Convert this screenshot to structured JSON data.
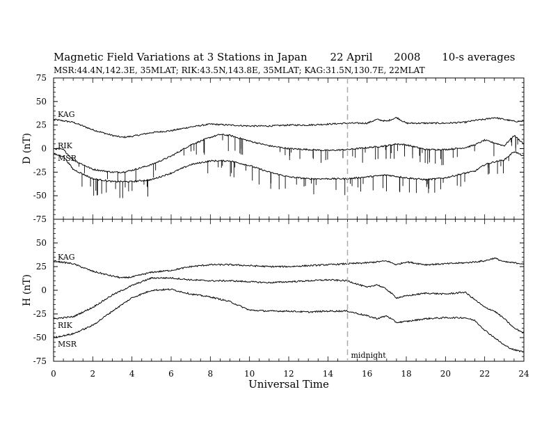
{
  "header": {
    "title_main": "Magnetic Field Variations at 3 Stations in Japan",
    "title_date": "22  April",
    "title_year": "2008",
    "title_avg": "10-s averages",
    "stations_line": "MSR:44.4N,142.3E, 35MLAT;   RIK:43.5N,143.8E, 35MLAT;   KAG:31.5N,130.7E, 22MLAT"
  },
  "colors": {
    "trace": "#000000",
    "midnight_line": "#aaaaaa",
    "frame": "#000000"
  },
  "chart_data": [
    {
      "type": "line",
      "panel": "top",
      "ylabel": "D (nT)",
      "ylim": [
        -75,
        75
      ],
      "yticks": [
        75,
        50,
        25,
        0,
        -25,
        -50,
        -75
      ],
      "xlim": [
        0,
        24
      ],
      "series": [
        {
          "name": "KAG",
          "x": [
            0,
            1,
            2,
            3,
            3.5,
            4,
            5,
            6,
            7,
            8,
            9,
            10,
            11,
            12,
            13,
            14,
            15,
            16,
            16.5,
            17,
            17.5,
            18,
            19,
            20,
            21,
            21.5,
            22,
            22.5,
            23,
            23.5,
            24
          ],
          "y": [
            31,
            28,
            20,
            14,
            12,
            13,
            17,
            19,
            23,
            26,
            25,
            24,
            24,
            25,
            25,
            26,
            27,
            27,
            31,
            29,
            33,
            27,
            27,
            27,
            28,
            30,
            31,
            33,
            31,
            29,
            29
          ]
        },
        {
          "name": "RIK",
          "x": [
            0,
            0.5,
            1,
            2,
            3,
            3.5,
            4,
            5,
            6,
            7,
            8,
            8.5,
            9,
            10,
            11,
            12,
            13,
            14,
            15,
            16,
            17,
            17.5,
            18,
            19,
            20,
            21,
            21.5,
            22,
            22.5,
            23,
            23.5,
            24
          ],
          "y": [
            0,
            -1,
            -12,
            -22,
            -25,
            -25,
            -23,
            -17,
            -8,
            4,
            12,
            15,
            14,
            8,
            3,
            0,
            -1,
            -2,
            -1,
            1,
            3,
            5,
            4,
            -1,
            -1,
            1,
            4,
            9,
            6,
            3,
            14,
            5
          ],
          "spike_low": 14
        },
        {
          "name": "MSR",
          "x": [
            0,
            0.5,
            1,
            2,
            3,
            4,
            5,
            6,
            7,
            8,
            9,
            10,
            11,
            12,
            13,
            14,
            15,
            16,
            17,
            18,
            19,
            20,
            21,
            21.5,
            22,
            22.5,
            23,
            23.5,
            24
          ],
          "y": [
            -6,
            -8,
            -22,
            -32,
            -35,
            -35,
            -33,
            -26,
            -17,
            -13,
            -13,
            -18,
            -25,
            -30,
            -32,
            -32,
            -32,
            -30,
            -28,
            -31,
            -33,
            -31,
            -26,
            -24,
            -17,
            -14,
            -12,
            -3,
            -8
          ],
          "spike_low": -44
        }
      ]
    },
    {
      "type": "line",
      "panel": "bottom",
      "ylabel": "H (nT)",
      "ylim": [
        -75,
        75
      ],
      "yticks": [
        50,
        25,
        0,
        -25,
        -50,
        -75
      ],
      "xlim": [
        0,
        24
      ],
      "xlabel": "Universal Time",
      "xticks": [
        0,
        2,
        4,
        6,
        8,
        10,
        12,
        14,
        16,
        18,
        20,
        22,
        24
      ],
      "series": [
        {
          "name": "KAG",
          "x": [
            0,
            1,
            2,
            3,
            3.5,
            4,
            5,
            6,
            7,
            8,
            9,
            10,
            11,
            12,
            13,
            14,
            15,
            16,
            17,
            17.5,
            18,
            19,
            20,
            21,
            22,
            22.5,
            23,
            24
          ],
          "y": [
            31,
            28,
            20,
            15,
            13,
            14,
            19,
            21,
            25,
            27,
            27,
            26,
            25,
            25,
            26,
            27,
            28,
            29,
            31,
            27,
            30,
            27,
            28,
            29,
            31,
            34,
            30,
            28
          ]
        },
        {
          "name": "RIK",
          "x": [
            0,
            1,
            2,
            3,
            4,
            5,
            6,
            7,
            8,
            9,
            10,
            11,
            12,
            13,
            14,
            15,
            16,
            16.5,
            17,
            17.5,
            18,
            19,
            20,
            21,
            21.5,
            22,
            22.5,
            23,
            23.5,
            24
          ],
          "y": [
            -30,
            -28,
            -18,
            -5,
            5,
            13,
            13,
            11,
            10,
            10,
            9,
            8,
            9,
            10,
            11,
            10,
            3,
            6,
            1,
            -8,
            -6,
            -3,
            -4,
            -2,
            -10,
            -18,
            -22,
            -30,
            -40,
            -45
          ]
        },
        {
          "name": "MSR",
          "x": [
            0,
            1,
            2,
            3,
            4,
            5,
            6,
            7,
            8,
            9,
            10,
            11,
            12,
            13,
            14,
            15,
            16,
            16.5,
            17,
            17.5,
            18,
            19,
            20,
            21,
            21.5,
            22,
            22.5,
            23,
            23.5,
            24
          ],
          "y": [
            -50,
            -46,
            -37,
            -22,
            -8,
            0,
            1,
            -4,
            -7,
            -12,
            -21,
            -22,
            -22,
            -23,
            -22,
            -22,
            -27,
            -30,
            -27,
            -34,
            -33,
            -30,
            -29,
            -29,
            -32,
            -42,
            -50,
            -58,
            -63,
            -65
          ]
        }
      ]
    }
  ],
  "annotations": {
    "midnight_label": "midnight",
    "midnight_x": 15,
    "top_labels": [
      "KAG",
      "RIK",
      "MSR"
    ],
    "bottom_labels": [
      "KAG",
      "RIK",
      "MSR"
    ]
  }
}
